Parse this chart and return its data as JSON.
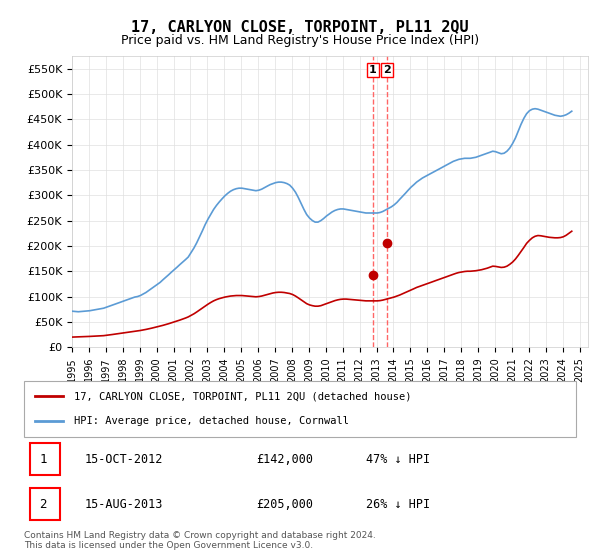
{
  "title": "17, CARLYON CLOSE, TORPOINT, PL11 2QU",
  "subtitle": "Price paid vs. HM Land Registry's House Price Index (HPI)",
  "xlabel": "",
  "ylabel": "",
  "ylim": [
    0,
    575000
  ],
  "yticks": [
    0,
    50000,
    100000,
    150000,
    200000,
    250000,
    300000,
    350000,
    400000,
    450000,
    500000,
    550000
  ],
  "ytick_labels": [
    "£0",
    "£50K",
    "£100K",
    "£150K",
    "£200K",
    "£250K",
    "£300K",
    "£350K",
    "£400K",
    "£450K",
    "£500K",
    "£550K"
  ],
  "xmin": 1995.0,
  "xmax": 2025.5,
  "hpi_color": "#5b9bd5",
  "price_color": "#c00000",
  "marker_color": "#c00000",
  "vline_color": "#ff6666",
  "transaction1_x": 2012.79,
  "transaction2_x": 2013.62,
  "transaction1_y": 142000,
  "transaction2_y": 205000,
  "transaction1_label": "1",
  "transaction2_label": "2",
  "legend_label_red": "17, CARLYON CLOSE, TORPOINT, PL11 2QU (detached house)",
  "legend_label_blue": "HPI: Average price, detached house, Cornwall",
  "table_row1": [
    "1",
    "15-OCT-2012",
    "£142,000",
    "47% ↓ HPI"
  ],
  "table_row2": [
    "2",
    "15-AUG-2013",
    "£205,000",
    "26% ↓ HPI"
  ],
  "footer": "Contains HM Land Registry data © Crown copyright and database right 2024.\nThis data is licensed under the Open Government Licence v3.0.",
  "background_color": "#ffffff",
  "grid_color": "#e0e0e0",
  "hpi_data": {
    "years": [
      1995.04,
      1995.21,
      1995.37,
      1995.54,
      1995.71,
      1995.87,
      1996.04,
      1996.21,
      1996.37,
      1996.54,
      1996.71,
      1996.87,
      1997.04,
      1997.21,
      1997.37,
      1997.54,
      1997.71,
      1997.87,
      1998.04,
      1998.21,
      1998.37,
      1998.54,
      1998.71,
      1998.87,
      1999.04,
      1999.21,
      1999.37,
      1999.54,
      1999.71,
      1999.87,
      2000.04,
      2000.21,
      2000.37,
      2000.54,
      2000.71,
      2000.87,
      2001.04,
      2001.21,
      2001.37,
      2001.54,
      2001.71,
      2001.87,
      2002.04,
      2002.21,
      2002.37,
      2002.54,
      2002.71,
      2002.87,
      2003.04,
      2003.21,
      2003.37,
      2003.54,
      2003.71,
      2003.87,
      2004.04,
      2004.21,
      2004.37,
      2004.54,
      2004.71,
      2004.87,
      2005.04,
      2005.21,
      2005.37,
      2005.54,
      2005.71,
      2005.87,
      2006.04,
      2006.21,
      2006.37,
      2006.54,
      2006.71,
      2006.87,
      2007.04,
      2007.21,
      2007.37,
      2007.54,
      2007.71,
      2007.87,
      2008.04,
      2008.21,
      2008.37,
      2008.54,
      2008.71,
      2008.87,
      2009.04,
      2009.21,
      2009.37,
      2009.54,
      2009.71,
      2009.87,
      2010.04,
      2010.21,
      2010.37,
      2010.54,
      2010.71,
      2010.87,
      2011.04,
      2011.21,
      2011.37,
      2011.54,
      2011.71,
      2011.87,
      2012.04,
      2012.21,
      2012.37,
      2012.54,
      2012.71,
      2012.87,
      2013.04,
      2013.21,
      2013.37,
      2013.54,
      2013.71,
      2013.87,
      2014.04,
      2014.21,
      2014.37,
      2014.54,
      2014.71,
      2014.87,
      2015.04,
      2015.21,
      2015.37,
      2015.54,
      2015.71,
      2015.87,
      2016.04,
      2016.21,
      2016.37,
      2016.54,
      2016.71,
      2016.87,
      2017.04,
      2017.21,
      2017.37,
      2017.54,
      2017.71,
      2017.87,
      2018.04,
      2018.21,
      2018.37,
      2018.54,
      2018.71,
      2018.87,
      2019.04,
      2019.21,
      2019.37,
      2019.54,
      2019.71,
      2019.87,
      2020.04,
      2020.21,
      2020.37,
      2020.54,
      2020.71,
      2020.87,
      2021.04,
      2021.21,
      2021.37,
      2021.54,
      2021.71,
      2021.87,
      2022.04,
      2022.21,
      2022.37,
      2022.54,
      2022.71,
      2022.87,
      2023.04,
      2023.21,
      2023.37,
      2023.54,
      2023.71,
      2023.87,
      2024.04,
      2024.21,
      2024.37,
      2024.54
    ],
    "values": [
      71000,
      70500,
      70000,
      70500,
      71000,
      71500,
      72000,
      73000,
      74000,
      75000,
      76000,
      77000,
      79000,
      81000,
      83000,
      85000,
      87000,
      89000,
      91000,
      93000,
      95000,
      97000,
      99000,
      100000,
      102000,
      105000,
      108000,
      112000,
      116000,
      120000,
      124000,
      128000,
      133000,
      138000,
      143000,
      148000,
      153000,
      158000,
      163000,
      168000,
      173000,
      178000,
      187000,
      196000,
      206000,
      218000,
      230000,
      242000,
      253000,
      263000,
      272000,
      280000,
      287000,
      293000,
      299000,
      304000,
      308000,
      311000,
      313000,
      314000,
      314000,
      313000,
      312000,
      311000,
      310000,
      309000,
      310000,
      312000,
      315000,
      318000,
      321000,
      323000,
      325000,
      326000,
      326000,
      325000,
      323000,
      320000,
      314000,
      306000,
      296000,
      284000,
      272000,
      262000,
      255000,
      250000,
      247000,
      247000,
      250000,
      254000,
      259000,
      263000,
      267000,
      270000,
      272000,
      273000,
      273000,
      272000,
      271000,
      270000,
      269000,
      268000,
      267000,
      266000,
      265000,
      265000,
      265000,
      265000,
      265000,
      266000,
      268000,
      271000,
      274000,
      277000,
      281000,
      286000,
      292000,
      298000,
      304000,
      310000,
      316000,
      321000,
      326000,
      330000,
      334000,
      337000,
      340000,
      343000,
      346000,
      349000,
      352000,
      355000,
      358000,
      361000,
      364000,
      367000,
      369000,
      371000,
      372000,
      373000,
      373000,
      373000,
      374000,
      375000,
      377000,
      379000,
      381000,
      383000,
      385000,
      387000,
      386000,
      384000,
      382000,
      383000,
      387000,
      393000,
      402000,
      413000,
      426000,
      440000,
      452000,
      461000,
      467000,
      470000,
      471000,
      470000,
      468000,
      466000,
      464000,
      462000,
      460000,
      458000,
      457000,
      456000,
      457000,
      459000,
      462000,
      466000
    ]
  },
  "price_data": {
    "years": [
      1995.04,
      1995.21,
      1995.37,
      1995.54,
      1995.71,
      1995.87,
      1996.04,
      1996.21,
      1996.37,
      1996.54,
      1996.71,
      1996.87,
      1997.04,
      1997.21,
      1997.37,
      1997.54,
      1997.71,
      1997.87,
      1998.04,
      1998.21,
      1998.37,
      1998.54,
      1998.71,
      1998.87,
      1999.04,
      1999.21,
      1999.37,
      1999.54,
      1999.71,
      1999.87,
      2000.04,
      2000.21,
      2000.37,
      2000.54,
      2000.71,
      2000.87,
      2001.04,
      2001.21,
      2001.37,
      2001.54,
      2001.71,
      2001.87,
      2002.04,
      2002.21,
      2002.37,
      2002.54,
      2002.71,
      2002.87,
      2003.04,
      2003.21,
      2003.37,
      2003.54,
      2003.71,
      2003.87,
      2004.04,
      2004.21,
      2004.37,
      2004.54,
      2004.71,
      2004.87,
      2005.04,
      2005.21,
      2005.37,
      2005.54,
      2005.71,
      2005.87,
      2006.04,
      2006.21,
      2006.37,
      2006.54,
      2006.71,
      2006.87,
      2007.04,
      2007.21,
      2007.37,
      2007.54,
      2007.71,
      2007.87,
      2008.04,
      2008.21,
      2008.37,
      2008.54,
      2008.71,
      2008.87,
      2009.04,
      2009.21,
      2009.37,
      2009.54,
      2009.71,
      2009.87,
      2010.04,
      2010.21,
      2010.37,
      2010.54,
      2010.71,
      2010.87,
      2011.04,
      2011.21,
      2011.37,
      2011.54,
      2011.71,
      2011.87,
      2012.04,
      2012.21,
      2012.37,
      2012.54,
      2012.71,
      2012.87,
      2013.04,
      2013.21,
      2013.37,
      2013.54,
      2013.71,
      2013.87,
      2014.04,
      2014.21,
      2014.37,
      2014.54,
      2014.71,
      2014.87,
      2015.04,
      2015.21,
      2015.37,
      2015.54,
      2015.71,
      2015.87,
      2016.04,
      2016.21,
      2016.37,
      2016.54,
      2016.71,
      2016.87,
      2017.04,
      2017.21,
      2017.37,
      2017.54,
      2017.71,
      2017.87,
      2018.04,
      2018.21,
      2018.37,
      2018.54,
      2018.71,
      2018.87,
      2019.04,
      2019.21,
      2019.37,
      2019.54,
      2019.71,
      2019.87,
      2020.04,
      2020.21,
      2020.37,
      2020.54,
      2020.71,
      2020.87,
      2021.04,
      2021.21,
      2021.37,
      2021.54,
      2021.71,
      2021.87,
      2022.04,
      2022.21,
      2022.37,
      2022.54,
      2022.71,
      2022.87,
      2023.04,
      2023.21,
      2023.37,
      2023.54,
      2023.71,
      2023.87,
      2024.04,
      2024.21,
      2024.37,
      2024.54
    ],
    "values": [
      20000,
      20200,
      20400,
      20600,
      20800,
      21000,
      21300,
      21600,
      21900,
      22200,
      22500,
      22800,
      23500,
      24200,
      25000,
      25800,
      26600,
      27400,
      28200,
      29000,
      29800,
      30600,
      31400,
      32200,
      33000,
      34000,
      35100,
      36300,
      37600,
      38900,
      40200,
      41600,
      43100,
      44700,
      46400,
      48100,
      49800,
      51600,
      53500,
      55500,
      57600,
      59800,
      62800,
      66000,
      69500,
      73500,
      77500,
      81500,
      85000,
      88500,
      91500,
      94000,
      96000,
      97500,
      99000,
      100000,
      101000,
      101500,
      102000,
      102000,
      102000,
      101500,
      101000,
      100500,
      100000,
      99500,
      100000,
      101000,
      102500,
      104000,
      105500,
      107000,
      108000,
      108500,
      108500,
      108000,
      107000,
      106000,
      104000,
      101000,
      97500,
      93500,
      89500,
      86000,
      83500,
      82000,
      81000,
      81000,
      82000,
      84000,
      86000,
      88000,
      90000,
      92000,
      93500,
      94500,
      95000,
      95000,
      94500,
      94000,
      93500,
      93000,
      92500,
      92000,
      91500,
      91500,
      91500,
      91500,
      91500,
      92000,
      93000,
      94500,
      96000,
      97500,
      99000,
      101000,
      103000,
      105500,
      108000,
      110500,
      113000,
      115500,
      118000,
      120000,
      122000,
      124000,
      126000,
      128000,
      130000,
      132000,
      134000,
      136000,
      138000,
      140000,
      142000,
      144000,
      146000,
      147500,
      148500,
      149500,
      150000,
      150000,
      150500,
      151000,
      152000,
      153000,
      154500,
      156000,
      158000,
      160000,
      159500,
      158500,
      157500,
      158000,
      160000,
      163500,
      168000,
      174000,
      181000,
      189000,
      197000,
      205000,
      211000,
      216000,
      219000,
      220500,
      220000,
      219000,
      218000,
      217000,
      216500,
      216000,
      216000,
      216500,
      218000,
      221000,
      225000,
      229000
    ]
  }
}
